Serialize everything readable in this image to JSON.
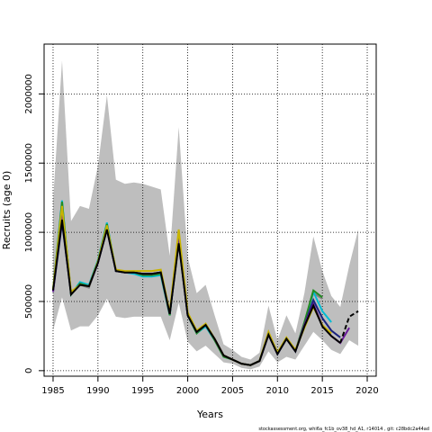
{
  "chart_data": {
    "type": "line",
    "title": "",
    "xlabel": "Years",
    "ylabel": "Recruits (age 0)",
    "footer": "stockassessment.org, whi6a_fc1b_ov38_hd_A1, r14014 , git: c28bdc2a44ad",
    "xlim": [
      1984,
      2021
    ],
    "ylim": [
      -40000,
      2360000
    ],
    "xticks": [
      1985,
      1990,
      1995,
      2000,
      2005,
      2010,
      2015,
      2020
    ],
    "yticks": [
      0,
      500000,
      1000000,
      1500000,
      2000000
    ],
    "ytick_labels": [
      "0",
      "500000",
      "1000000",
      "1500000",
      "2000000"
    ],
    "grid": true,
    "band": {
      "x": [
        1985,
        1986,
        1987,
        1988,
        1989,
        1990,
        1991,
        1992,
        1993,
        1994,
        1995,
        1996,
        1997,
        1998,
        1999,
        2000,
        2001,
        2002,
        2003,
        2004,
        2005,
        2006,
        2007,
        2008,
        2009,
        2010,
        2011,
        2012,
        2013,
        2014,
        2015,
        2016,
        2017,
        2018,
        2019
      ],
      "lower": [
        290000,
        530000,
        290000,
        320000,
        320000,
        400000,
        520000,
        390000,
        380000,
        390000,
        390000,
        390000,
        390000,
        220000,
        490000,
        210000,
        140000,
        180000,
        120000,
        60000,
        50000,
        20000,
        10000,
        30000,
        140000,
        60000,
        100000,
        80000,
        180000,
        280000,
        220000,
        150000,
        120000,
        220000,
        180000
      ],
      "upper": [
        1230000,
        2240000,
        1080000,
        1190000,
        1170000,
        1480000,
        1990000,
        1380000,
        1350000,
        1360000,
        1350000,
        1330000,
        1310000,
        830000,
        1760000,
        820000,
        560000,
        620000,
        400000,
        190000,
        150000,
        100000,
        80000,
        130000,
        470000,
        220000,
        400000,
        270000,
        560000,
        970000,
        720000,
        540000,
        460000,
        760000,
        1020000
      ]
    },
    "series": [
      {
        "name": "",
        "color": "#808080",
        "x": [
          1985,
          1986,
          1987,
          1988,
          1989,
          1990,
          1991,
          1992,
          1993,
          1994,
          1995,
          1996,
          1997,
          1998,
          1999,
          2000,
          2001,
          2002,
          2003,
          2004,
          2005,
          2006,
          2007,
          2008,
          2009,
          2010,
          2011,
          2012,
          2013,
          2014,
          2015
        ],
        "values": [
          580000,
          1200000,
          560000,
          620000,
          600000,
          780000,
          1040000,
          720000,
          710000,
          710000,
          700000,
          690000,
          710000,
          410000,
          990000,
          400000,
          280000,
          330000,
          230000,
          110000,
          80000,
          50000,
          40000,
          70000,
          260000,
          120000,
          230000,
          140000,
          350000,
          560000,
          520000
        ]
      },
      {
        "name": "",
        "color": "#00bcd4",
        "x": [
          1985,
          1986,
          1987,
          1988,
          1989,
          1990,
          1991,
          1992,
          1993,
          1994,
          1995,
          1996,
          1997,
          1998,
          1999,
          2000,
          2001,
          2002,
          2003,
          2004,
          2005,
          2006,
          2007,
          2008,
          2009,
          2010,
          2011,
          2012,
          2013,
          2014,
          2015,
          2016
        ],
        "values": [
          590000,
          1230000,
          550000,
          640000,
          620000,
          800000,
          1070000,
          720000,
          710000,
          700000,
          680000,
          680000,
          690000,
          400000,
          960000,
          400000,
          270000,
          320000,
          220000,
          100000,
          80000,
          50000,
          40000,
          70000,
          270000,
          120000,
          230000,
          140000,
          340000,
          570000,
          430000,
          350000
        ]
      },
      {
        "name": "",
        "color": "#228b22",
        "x": [
          1985,
          1986,
          1987,
          1988,
          1989,
          1990,
          1991,
          1992,
          1993,
          1994,
          1995,
          1996,
          1997,
          1998,
          1999,
          2000,
          2001,
          2002,
          2003,
          2004,
          2005,
          2006,
          2007,
          2008,
          2009,
          2010,
          2011,
          2012,
          2013,
          2014,
          2015
        ],
        "values": [
          580000,
          1220000,
          550000,
          630000,
          610000,
          790000,
          1060000,
          720000,
          710000,
          710000,
          690000,
          690000,
          700000,
          400000,
          970000,
          400000,
          270000,
          330000,
          220000,
          100000,
          80000,
          50000,
          40000,
          70000,
          260000,
          120000,
          230000,
          140000,
          350000,
          580000,
          530000
        ]
      },
      {
        "name": "",
        "color": "#1a237e",
        "x": [
          1985,
          1986,
          1987,
          1988,
          1989,
          1990,
          1991,
          1992,
          1993,
          1994,
          1995,
          1996,
          1997,
          1998,
          1999,
          2000,
          2001,
          2002,
          2003,
          2004,
          2005,
          2006,
          2007,
          2008,
          2009,
          2010,
          2011,
          2012,
          2013,
          2014,
          2015,
          2016,
          2017
        ],
        "values": [
          570000,
          1070000,
          560000,
          620000,
          610000,
          780000,
          1020000,
          720000,
          710000,
          710000,
          700000,
          700000,
          710000,
          410000,
          930000,
          400000,
          280000,
          330000,
          230000,
          110000,
          80000,
          50000,
          40000,
          70000,
          260000,
          120000,
          230000,
          140000,
          330000,
          510000,
          380000,
          290000,
          240000
        ]
      },
      {
        "name": "",
        "color": "#6a1b9a",
        "x": [
          1985,
          1986,
          1987,
          1988,
          1989,
          1990,
          1991,
          1992,
          1993,
          1994,
          1995,
          1996,
          1997,
          1998,
          1999,
          2000,
          2001,
          2002,
          2003,
          2004,
          2005,
          2006,
          2007,
          2008,
          2009,
          2010,
          2011,
          2012,
          2013,
          2014,
          2015,
          2016,
          2017,
          2018
        ],
        "values": [
          570000,
          1150000,
          560000,
          620000,
          610000,
          780000,
          1030000,
          720000,
          710000,
          710000,
          700000,
          700000,
          710000,
          410000,
          950000,
          400000,
          280000,
          330000,
          230000,
          110000,
          80000,
          50000,
          40000,
          70000,
          260000,
          120000,
          230000,
          140000,
          330000,
          480000,
          330000,
          250000,
          200000,
          310000
        ]
      },
      {
        "name": "",
        "color": "#c8b400",
        "x": [
          1985,
          1986,
          1987,
          1988,
          1989,
          1990,
          1991,
          1992,
          1993,
          1994,
          1995,
          1996,
          1997,
          1998,
          1999,
          2000,
          2001,
          2002,
          2003,
          2004,
          2005,
          2006,
          2007,
          2008,
          2009,
          2010,
          2011,
          2012,
          2013,
          2014,
          2015,
          2016
        ],
        "values": [
          590000,
          1190000,
          570000,
          620000,
          610000,
          790000,
          1050000,
          730000,
          720000,
          720000,
          720000,
          720000,
          730000,
          420000,
          1020000,
          420000,
          290000,
          340000,
          230000,
          110000,
          80000,
          50000,
          40000,
          70000,
          280000,
          130000,
          240000,
          150000,
          310000,
          460000,
          330000,
          270000
        ]
      },
      {
        "name": "",
        "color": "#000000",
        "dashed_from": 2017,
        "x": [
          1985,
          1986,
          1987,
          1988,
          1989,
          1990,
          1991,
          1992,
          1993,
          1994,
          1995,
          1996,
          1997,
          1998,
          1999,
          2000,
          2001,
          2002,
          2003,
          2004,
          2005,
          2006,
          2007,
          2008,
          2009,
          2010,
          2011,
          2012,
          2013,
          2014,
          2015,
          2016,
          2017,
          2018,
          2019
        ],
        "values": [
          580000,
          1090000,
          550000,
          620000,
          610000,
          780000,
          1020000,
          720000,
          710000,
          710000,
          700000,
          700000,
          710000,
          410000,
          920000,
          400000,
          280000,
          330000,
          230000,
          110000,
          80000,
          50000,
          40000,
          70000,
          260000,
          120000,
          230000,
          140000,
          320000,
          470000,
          320000,
          250000,
          200000,
          390000,
          430000
        ]
      }
    ]
  }
}
